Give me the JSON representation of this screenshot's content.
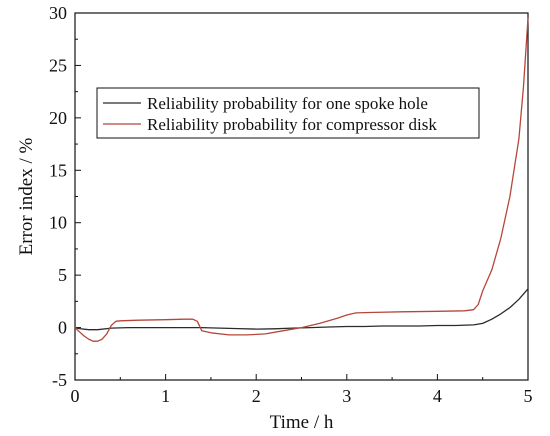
{
  "chart_data": {
    "type": "line",
    "title": "",
    "xlabel": "Time / h",
    "ylabel": "Error index / %",
    "xlim": [
      0,
      5
    ],
    "ylim": [
      -5,
      30
    ],
    "xticks": [
      "0",
      "1",
      "2",
      "3",
      "4",
      "5"
    ],
    "yticks": [
      "-5",
      "0",
      "5",
      "10",
      "15",
      "20",
      "25",
      "30"
    ],
    "xtick_values": [
      0,
      1,
      2,
      3,
      4,
      5
    ],
    "ytick_values": [
      -5,
      0,
      5,
      10,
      15,
      20,
      25,
      30
    ],
    "grid": false,
    "legend_position": "upper-left",
    "series": [
      {
        "name": "Reliability probability for one spoke hole",
        "color": "#2b2b2b",
        "x": [
          0.0,
          0.05,
          0.15,
          0.25,
          0.4,
          0.6,
          0.8,
          1.0,
          1.2,
          1.4,
          1.6,
          1.8,
          2.0,
          2.2,
          2.4,
          2.6,
          2.8,
          3.0,
          3.2,
          3.4,
          3.6,
          3.8,
          4.0,
          4.2,
          4.4,
          4.5,
          4.6,
          4.7,
          4.8,
          4.9,
          5.0
        ],
        "y": [
          0.0,
          -0.1,
          -0.2,
          -0.2,
          -0.05,
          0.0,
          0.0,
          0.0,
          0.0,
          0.0,
          -0.05,
          -0.1,
          -0.15,
          -0.12,
          -0.05,
          0.0,
          0.05,
          0.1,
          0.1,
          0.15,
          0.15,
          0.15,
          0.2,
          0.2,
          0.25,
          0.4,
          0.8,
          1.3,
          1.9,
          2.7,
          3.7
        ]
      },
      {
        "name": "Reliability probability for compressor disk",
        "color": "#b5473a",
        "x": [
          0.0,
          0.05,
          0.1,
          0.15,
          0.2,
          0.25,
          0.3,
          0.35,
          0.4,
          0.45,
          0.5,
          0.7,
          1.0,
          1.2,
          1.3,
          1.35,
          1.4,
          1.5,
          1.7,
          1.9,
          2.1,
          2.3,
          2.5,
          2.7,
          2.9,
          3.0,
          3.1,
          3.3,
          3.6,
          4.0,
          4.3,
          4.4,
          4.45,
          4.5,
          4.6,
          4.7,
          4.8,
          4.9,
          4.95,
          5.0
        ],
        "y": [
          0.0,
          -0.4,
          -0.8,
          -1.1,
          -1.3,
          -1.3,
          -1.1,
          -0.6,
          0.2,
          0.6,
          0.65,
          0.7,
          0.75,
          0.8,
          0.8,
          0.6,
          -0.3,
          -0.5,
          -0.7,
          -0.7,
          -0.6,
          -0.3,
          0.0,
          0.4,
          0.9,
          1.2,
          1.4,
          1.45,
          1.5,
          1.55,
          1.6,
          1.7,
          2.2,
          3.5,
          5.5,
          8.5,
          12.5,
          18.0,
          23.0,
          29.5
        ]
      }
    ]
  }
}
